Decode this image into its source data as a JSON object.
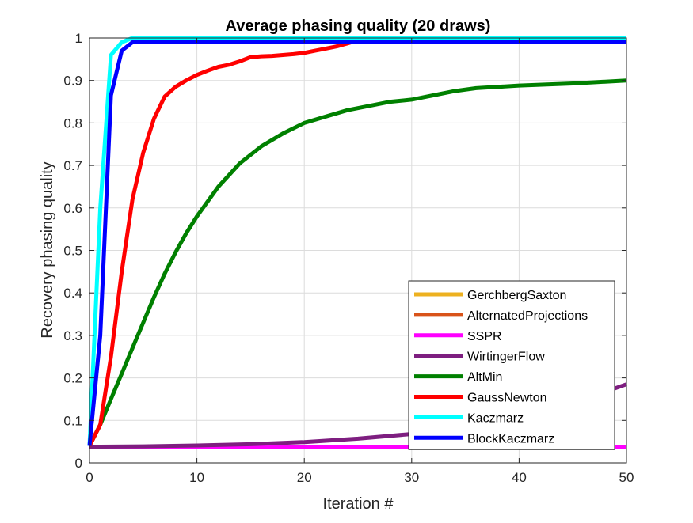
{
  "chart_data": {
    "type": "line",
    "title": "Average phasing quality (20 draws)",
    "xlabel": "Iteration #",
    "ylabel": "Recovery phasing quality",
    "xlim": [
      0,
      50
    ],
    "ylim": [
      0,
      1
    ],
    "xticks": [
      0,
      10,
      20,
      30,
      40,
      50
    ],
    "yticks": [
      0,
      0.1,
      0.2,
      0.3,
      0.4,
      0.5,
      0.6,
      0.7,
      0.8,
      0.9,
      1
    ],
    "xtick_labels": [
      "0",
      "10",
      "20",
      "30",
      "40",
      "50"
    ],
    "ytick_labels": [
      "0",
      "0.1",
      "0.2",
      "0.3",
      "0.4",
      "0.5",
      "0.6",
      "0.7",
      "0.8",
      "0.9",
      "1"
    ],
    "grid": true,
    "legend_position": "bottom-right",
    "series": [
      {
        "name": "GerchbergSaxton",
        "color": "#EDB120",
        "x": [
          25,
          50
        ],
        "y": [
          1.0,
          1.0
        ]
      },
      {
        "name": "AlternatedProjections",
        "color": "#D95319",
        "x": [
          25,
          50
        ],
        "y": [
          1.0,
          1.0
        ]
      },
      {
        "name": "SSPR",
        "color": "#FF00FF",
        "x": [
          0,
          10,
          20,
          30,
          40,
          50
        ],
        "y": [
          0.038,
          0.038,
          0.038,
          0.038,
          0.038,
          0.038
        ]
      },
      {
        "name": "WirtingerFlow",
        "color": "#7E1E80",
        "x": [
          0,
          5,
          10,
          15,
          20,
          25,
          30,
          35,
          40,
          45,
          50
        ],
        "y": [
          0.038,
          0.039,
          0.041,
          0.044,
          0.049,
          0.057,
          0.068,
          0.085,
          0.11,
          0.14,
          0.185
        ]
      },
      {
        "name": "AltMin",
        "color": "#008000",
        "x": [
          0,
          1,
          2,
          3,
          4,
          5,
          6,
          7,
          8,
          9,
          10,
          12,
          14,
          16,
          18,
          20,
          22,
          24,
          26,
          28,
          30,
          32,
          34,
          36,
          38,
          40,
          45,
          50
        ],
        "y": [
          0.04,
          0.09,
          0.15,
          0.21,
          0.27,
          0.33,
          0.39,
          0.445,
          0.495,
          0.54,
          0.58,
          0.65,
          0.705,
          0.745,
          0.775,
          0.8,
          0.815,
          0.83,
          0.84,
          0.85,
          0.855,
          0.865,
          0.875,
          0.882,
          0.885,
          0.888,
          0.893,
          0.9
        ]
      },
      {
        "name": "GaussNewton",
        "color": "#FF0000",
        "x": [
          0,
          1,
          2,
          3,
          4,
          5,
          6,
          7,
          8,
          9,
          10,
          11,
          12,
          13,
          14,
          15,
          16,
          17,
          18,
          19,
          20,
          21,
          22,
          23,
          24,
          25,
          50
        ],
        "y": [
          0.04,
          0.09,
          0.25,
          0.45,
          0.62,
          0.73,
          0.81,
          0.862,
          0.885,
          0.9,
          0.913,
          0.923,
          0.932,
          0.937,
          0.945,
          0.955,
          0.957,
          0.958,
          0.96,
          0.962,
          0.965,
          0.97,
          0.975,
          0.98,
          0.987,
          0.995,
          0.995
        ]
      },
      {
        "name": "Kaczmarz",
        "color": "#00FFFF",
        "x": [
          0,
          1,
          2,
          3,
          4,
          50
        ],
        "y": [
          0.04,
          0.6,
          0.96,
          0.99,
          1.0,
          1.0
        ]
      },
      {
        "name": "BlockKaczmarz",
        "color": "#0000FF",
        "x": [
          0,
          1,
          2,
          3,
          4,
          5,
          50
        ],
        "y": [
          0.04,
          0.3,
          0.865,
          0.97,
          0.99,
          0.99,
          0.99
        ]
      }
    ]
  }
}
